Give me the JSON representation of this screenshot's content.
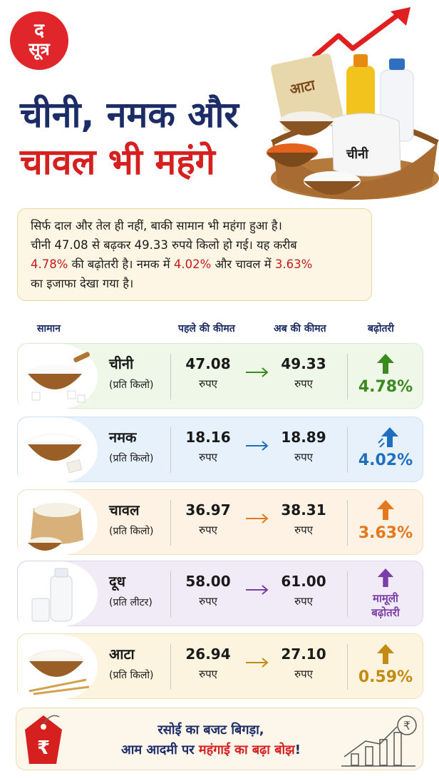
{
  "brand": {
    "logo_line1": "द",
    "logo_line2": "सूत्र"
  },
  "headline": {
    "line1": "चीनी, नमक और",
    "line2": "चावल भी महंगे"
  },
  "hero": {
    "bag_label": "आटा",
    "sack_label": "चीनी"
  },
  "intro": {
    "line1": "सिर्फ दाल और तेल ही नहीं, बाकी सामान भी महंगा हुआ है।",
    "line2": "चीनी 47.08 से बढ़कर 49.33 रुपये किलो हो गई। यह करीब",
    "line3_hl": "4.78%",
    "line3_rest": " की बढ़ोतरी है। नमक में ",
    "line3_hl2": "4.02%",
    "line3_mid": " और चावल में ",
    "line3_hl3": "3.63%",
    "line4": "का इजाफा देखा गया है।"
  },
  "table": {
    "headers": {
      "item": "सामान",
      "old": "पहले की कीमत",
      "new": "अब की कीमत",
      "change": "बढ़ोतरी"
    },
    "rows": [
      {
        "name": "चीनी",
        "unit": "(प्रति किलो)",
        "old": "47.08",
        "old_cur": "रुपए",
        "new": "49.33",
        "new_cur": "रुपए",
        "change": "4.78%",
        "color": "#3a8a1e"
      },
      {
        "name": "नमक",
        "unit": "(प्रति किलो)",
        "old": "18.16",
        "old_cur": "रुपए",
        "new": "18.89",
        "new_cur": "रुपए",
        "change": "4.02%",
        "color": "#1f6fc0"
      },
      {
        "name": "चावल",
        "unit": "(प्रति किलो)",
        "old": "36.97",
        "old_cur": "रुपए",
        "new": "38.31",
        "new_cur": "रुपए",
        "change": "3.63%",
        "color": "#e3781c"
      },
      {
        "name": "दूध",
        "unit": "(प्रति लीटर)",
        "old": "58.00",
        "old_cur": "रुपए",
        "new": "61.00",
        "new_cur": "रुपए",
        "change_line1": "मामूली",
        "change_line2": "बढ़ोतरी",
        "color": "#7a3ea8"
      },
      {
        "name": "आटा",
        "unit": "(प्रति किलो)",
        "old": "26.94",
        "old_cur": "रुपए",
        "new": "27.10",
        "new_cur": "रुपए",
        "change": "0.59%",
        "color": "#c58a12"
      }
    ]
  },
  "footer": {
    "line1": "रसोई का बजट बिगड़ा,",
    "line2_a": "आम आदमी पर ",
    "line2_red": "महंगाई का बढ़ा बोझ",
    "line2_b": "!",
    "tag_symbol": "₹",
    "coin_symbol": "₹"
  },
  "colors": {
    "navy": "#1c2c66",
    "red": "#d62020"
  }
}
